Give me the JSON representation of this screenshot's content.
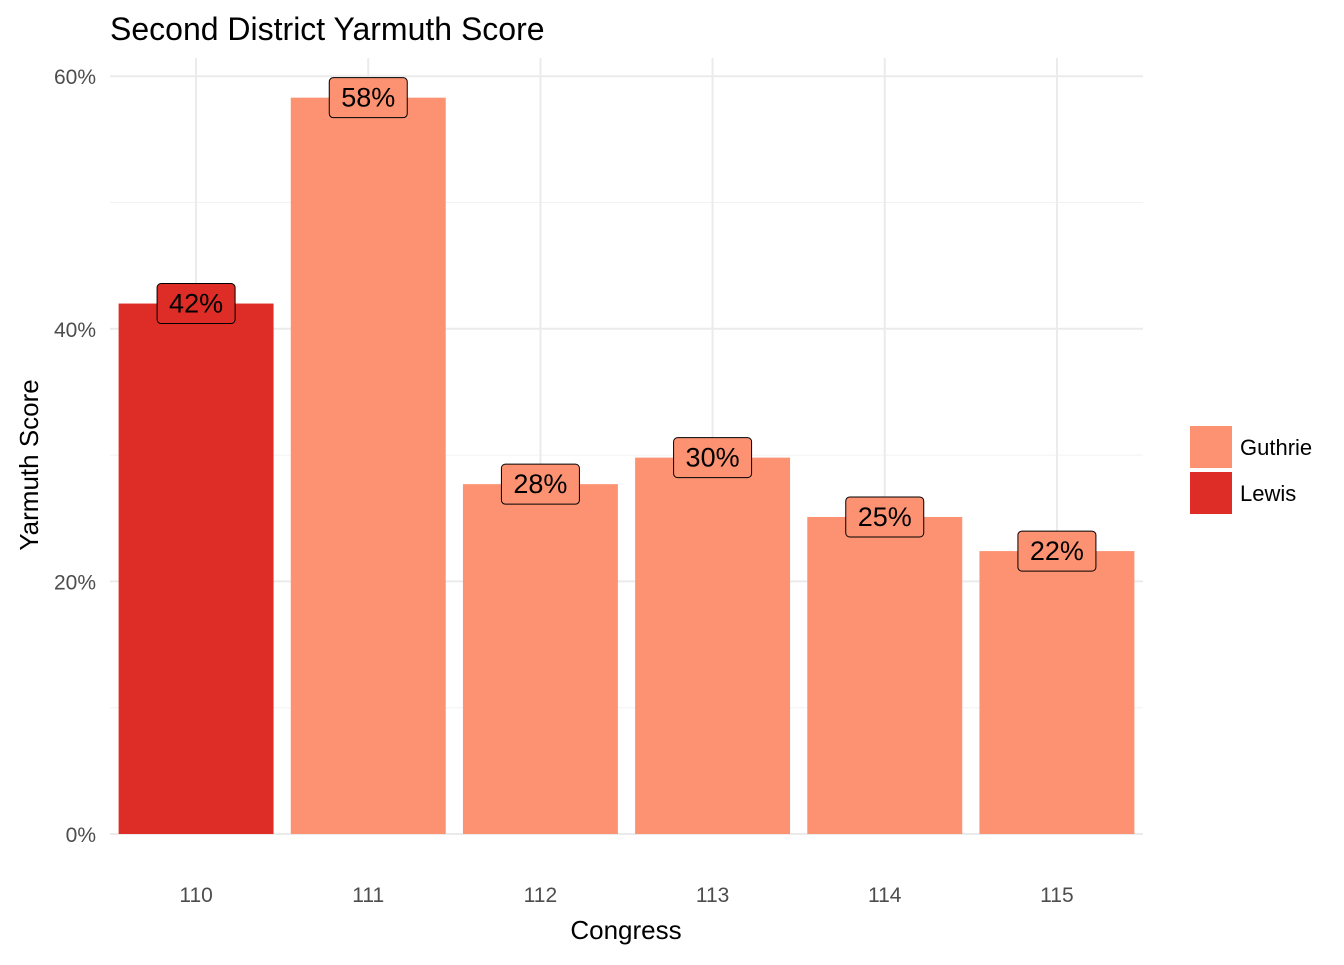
{
  "chart_data": {
    "type": "bar",
    "title": "Second District Yarmuth Score",
    "xlabel": "Congress",
    "ylabel": "Yarmuth Score",
    "categories": [
      "110",
      "111",
      "112",
      "113",
      "114",
      "115"
    ],
    "values": [
      42,
      58,
      28,
      30,
      25,
      22
    ],
    "bar_heights_exact": [
      42.0,
      58.3,
      27.7,
      29.8,
      25.1,
      22.4
    ],
    "labels": [
      "42%",
      "58%",
      "28%",
      "30%",
      "25%",
      "22%"
    ],
    "groups": [
      "Lewis",
      "Guthrie",
      "Guthrie",
      "Guthrie",
      "Guthrie",
      "Guthrie"
    ],
    "y_ticks": [
      0,
      20,
      40,
      60
    ],
    "y_tick_labels": [
      "0%",
      "20%",
      "40%",
      "60%"
    ],
    "ylim": [
      0,
      60
    ],
    "grid": true,
    "legend": {
      "placement": "right",
      "entries": [
        {
          "name": "Guthrie",
          "color": "#FC9272"
        },
        {
          "name": "Lewis",
          "color": "#DE2D26"
        }
      ]
    },
    "colors": {
      "Guthrie": "#FC9272",
      "Lewis": "#DE2D26"
    }
  }
}
